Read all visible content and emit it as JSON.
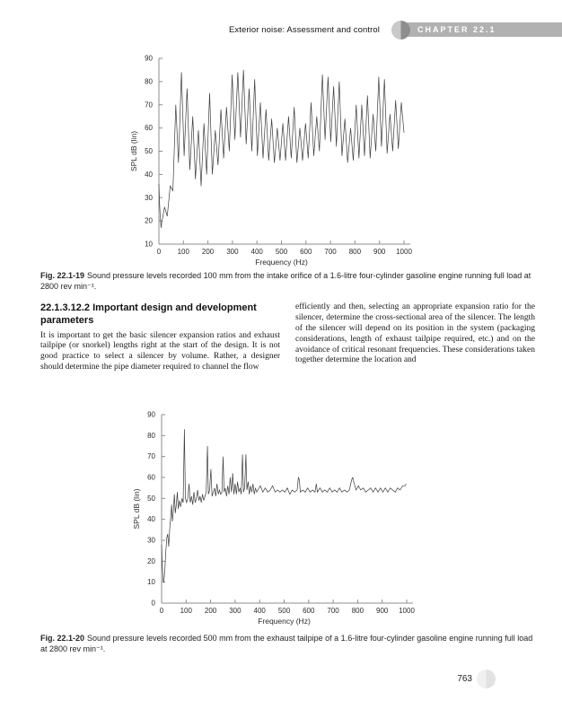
{
  "header": {
    "title": "Exterior noise: Assessment and control",
    "chapter_label": "CHAPTER 22.1"
  },
  "figure1": {
    "caption_label": "Fig. 22.1-19",
    "caption_text": "Sound pressure levels recorded 100 mm from the intake orifice of a 1.6-litre four-cylinder gasoline engine running full load at 2800 rev min⁻¹."
  },
  "section": {
    "heading": "22.1.3.12.2  Important design and development parameters",
    "col_left": "It is important to get the basic silencer expansion ratios and exhaust tailpipe (or snorkel) lengths right at the start of the design. It is not good practice to select a silencer by volume. Rather, a designer should determine the pipe diameter required to channel the flow",
    "col_right": "efficiently and then, selecting an appropriate expansion ratio for the silencer, determine the cross-sectional area of the silencer. The length of the silencer will depend on its position in the system (packaging considerations, length of exhaust tailpipe required, etc.) and on the avoidance of critical resonant frequencies. These considerations taken together determine the location and"
  },
  "figure2": {
    "caption_label": "Fig. 22.1-20",
    "caption_text": "Sound pressure levels recorded 500 mm from the exhaust tailpipe of a 1.6-litre four-cylinder gasoline engine running full load at 2800 rev min⁻¹."
  },
  "footer": {
    "page_number": "763"
  },
  "colors": {
    "chapter_bar": "#b1b1b1",
    "tab_circle_light": "#c9c9c9",
    "tab_circle_dark": "#8e8e8e",
    "page_circle_light": "#f0f0f0",
    "page_circle_dark": "#e2e2e2",
    "axis": "#8d8d8d",
    "trace": "#3c3c3c"
  },
  "chart_data": [
    {
      "type": "line",
      "title": "",
      "xlabel": "Frequency (Hz)",
      "ylabel": "SPL dB (lin)",
      "xlim": [
        0,
        1000
      ],
      "ylim": [
        10,
        90
      ],
      "x_ticks": [
        0,
        100,
        200,
        300,
        400,
        500,
        600,
        700,
        800,
        900,
        1000
      ],
      "y_ticks": [
        10,
        20,
        30,
        40,
        50,
        60,
        70,
        80,
        90
      ],
      "grid": false,
      "legend": null,
      "points": [
        [
          0,
          36
        ],
        [
          3,
          27
        ],
        [
          6,
          21
        ],
        [
          9,
          17
        ],
        [
          11,
          19
        ],
        [
          23,
          26
        ],
        [
          34,
          22
        ],
        [
          46,
          35
        ],
        [
          57,
          33
        ],
        [
          69,
          70
        ],
        [
          80,
          45
        ],
        [
          92,
          84
        ],
        [
          103,
          48
        ],
        [
          115,
          77
        ],
        [
          126,
          42
        ],
        [
          138,
          65
        ],
        [
          149,
          38
        ],
        [
          161,
          59
        ],
        [
          172,
          35
        ],
        [
          184,
          62
        ],
        [
          195,
          40
        ],
        [
          207,
          75
        ],
        [
          218,
          40
        ],
        [
          230,
          59
        ],
        [
          241,
          44
        ],
        [
          253,
          68
        ],
        [
          264,
          47
        ],
        [
          276,
          69
        ],
        [
          287,
          50
        ],
        [
          299,
          83
        ],
        [
          310,
          55
        ],
        [
          322,
          84
        ],
        [
          333,
          56
        ],
        [
          345,
          85
        ],
        [
          356,
          53
        ],
        [
          368,
          77
        ],
        [
          379,
          50
        ],
        [
          391,
          81
        ],
        [
          402,
          48
        ],
        [
          414,
          71
        ],
        [
          425,
          47
        ],
        [
          437,
          68
        ],
        [
          448,
          46
        ],
        [
          460,
          64
        ],
        [
          471,
          45
        ],
        [
          483,
          60
        ],
        [
          494,
          46
        ],
        [
          506,
          62
        ],
        [
          517,
          46
        ],
        [
          529,
          65
        ],
        [
          540,
          47
        ],
        [
          552,
          69
        ],
        [
          563,
          45
        ],
        [
          575,
          60
        ],
        [
          586,
          46
        ],
        [
          598,
          62
        ],
        [
          609,
          47
        ],
        [
          621,
          71
        ],
        [
          632,
          48
        ],
        [
          644,
          65
        ],
        [
          655,
          50
        ],
        [
          667,
          83
        ],
        [
          678,
          55
        ],
        [
          690,
          82
        ],
        [
          701,
          54
        ],
        [
          713,
          78
        ],
        [
          724,
          52
        ],
        [
          736,
          80
        ],
        [
          747,
          48
        ],
        [
          759,
          64
        ],
        [
          770,
          45
        ],
        [
          782,
          60
        ],
        [
          793,
          46
        ],
        [
          805,
          70
        ],
        [
          816,
          47
        ],
        [
          828,
          70
        ],
        [
          839,
          48
        ],
        [
          851,
          74
        ],
        [
          862,
          47
        ],
        [
          874,
          66
        ],
        [
          885,
          50
        ],
        [
          897,
          82
        ],
        [
          908,
          52
        ],
        [
          920,
          81
        ],
        [
          931,
          49
        ],
        [
          943,
          66
        ],
        [
          954,
          50
        ],
        [
          966,
          72
        ],
        [
          977,
          51
        ],
        [
          989,
          71
        ],
        [
          1000,
          58
        ]
      ]
    },
    {
      "type": "line",
      "title": "",
      "xlabel": "Frequency (Hz)",
      "ylabel": "SPL dB (lin)",
      "xlim": [
        0,
        1000
      ],
      "ylim": [
        0,
        90
      ],
      "x_ticks": [
        0,
        100,
        200,
        300,
        400,
        500,
        600,
        700,
        800,
        900,
        1000
      ],
      "y_ticks": [
        0,
        10,
        20,
        30,
        40,
        50,
        60,
        70,
        80,
        90
      ],
      "grid": false,
      "legend": null,
      "points": [
        [
          0,
          28
        ],
        [
          3,
          18
        ],
        [
          6,
          11
        ],
        [
          9,
          10
        ],
        [
          13,
          15
        ],
        [
          17,
          24
        ],
        [
          21,
          31
        ],
        [
          25,
          33
        ],
        [
          29,
          27
        ],
        [
          33,
          35
        ],
        [
          37,
          41
        ],
        [
          41,
          47
        ],
        [
          44,
          39
        ],
        [
          48,
          44
        ],
        [
          52,
          52
        ],
        [
          56,
          43
        ],
        [
          60,
          47
        ],
        [
          64,
          53
        ],
        [
          68,
          45
        ],
        [
          73,
          49
        ],
        [
          78,
          46
        ],
        [
          83,
          50
        ],
        [
          88,
          48
        ],
        [
          93,
          83
        ],
        [
          97,
          50
        ],
        [
          102,
          48
        ],
        [
          107,
          50
        ],
        [
          112,
          57
        ],
        [
          117,
          48
        ],
        [
          122,
          51
        ],
        [
          127,
          47
        ],
        [
          132,
          53
        ],
        [
          137,
          48
        ],
        [
          142,
          50
        ],
        [
          147,
          54
        ],
        [
          152,
          49
        ],
        [
          157,
          51
        ],
        [
          162,
          48
        ],
        [
          167,
          52
        ],
        [
          172,
          49
        ],
        [
          177,
          51
        ],
        [
          182,
          53
        ],
        [
          187,
          75
        ],
        [
          191,
          52
        ],
        [
          196,
          54
        ],
        [
          201,
          64
        ],
        [
          206,
          51
        ],
        [
          211,
          53
        ],
        [
          216,
          55
        ],
        [
          221,
          51
        ],
        [
          226,
          57
        ],
        [
          231,
          52
        ],
        [
          236,
          54
        ],
        [
          241,
          52
        ],
        [
          246,
          53
        ],
        [
          251,
          70
        ],
        [
          255,
          53
        ],
        [
          260,
          55
        ],
        [
          265,
          51
        ],
        [
          270,
          56
        ],
        [
          275,
          52
        ],
        [
          280,
          60
        ],
        [
          285,
          53
        ],
        [
          290,
          62
        ],
        [
          295,
          52
        ],
        [
          300,
          57
        ],
        [
          305,
          52
        ],
        [
          310,
          58
        ],
        [
          315,
          53
        ],
        [
          320,
          55
        ],
        [
          325,
          52
        ],
        [
          330,
          71
        ],
        [
          334,
          53
        ],
        [
          339,
          55
        ],
        [
          344,
          71
        ],
        [
          348,
          54
        ],
        [
          353,
          58
        ],
        [
          358,
          52
        ],
        [
          363,
          56
        ],
        [
          368,
          53
        ],
        [
          373,
          57
        ],
        [
          378,
          52
        ],
        [
          383,
          55
        ],
        [
          388,
          53
        ],
        [
          393,
          54
        ],
        [
          403,
          56
        ],
        [
          413,
          53
        ],
        [
          423,
          55
        ],
        [
          433,
          53
        ],
        [
          443,
          54
        ],
        [
          453,
          56
        ],
        [
          463,
          53
        ],
        [
          473,
          54
        ],
        [
          483,
          53
        ],
        [
          493,
          54
        ],
        [
          503,
          53
        ],
        [
          513,
          55
        ],
        [
          523,
          52
        ],
        [
          533,
          54
        ],
        [
          543,
          53
        ],
        [
          553,
          54
        ],
        [
          558,
          60
        ],
        [
          562,
          59
        ],
        [
          566,
          53
        ],
        [
          576,
          54
        ],
        [
          586,
          53
        ],
        [
          596,
          55
        ],
        [
          606,
          53
        ],
        [
          616,
          54
        ],
        [
          626,
          53
        ],
        [
          631,
          57
        ],
        [
          636,
          53
        ],
        [
          646,
          55
        ],
        [
          656,
          53
        ],
        [
          666,
          54
        ],
        [
          676,
          53
        ],
        [
          686,
          55
        ],
        [
          696,
          53
        ],
        [
          706,
          54
        ],
        [
          716,
          53
        ],
        [
          726,
          55
        ],
        [
          736,
          53
        ],
        [
          746,
          54
        ],
        [
          756,
          53
        ],
        [
          766,
          54
        ],
        [
          776,
          59
        ],
        [
          780,
          60
        ],
        [
          784,
          58
        ],
        [
          793,
          54
        ],
        [
          803,
          56
        ],
        [
          813,
          54
        ],
        [
          823,
          55
        ],
        [
          833,
          53
        ],
        [
          843,
          54
        ],
        [
          853,
          55
        ],
        [
          863,
          53
        ],
        [
          873,
          55
        ],
        [
          883,
          53
        ],
        [
          893,
          55
        ],
        [
          903,
          53
        ],
        [
          913,
          55
        ],
        [
          923,
          53
        ],
        [
          933,
          55
        ],
        [
          943,
          54
        ],
        [
          953,
          53
        ],
        [
          963,
          55
        ],
        [
          973,
          54
        ],
        [
          983,
          56
        ],
        [
          993,
          56
        ],
        [
          998,
          57
        ]
      ]
    }
  ]
}
